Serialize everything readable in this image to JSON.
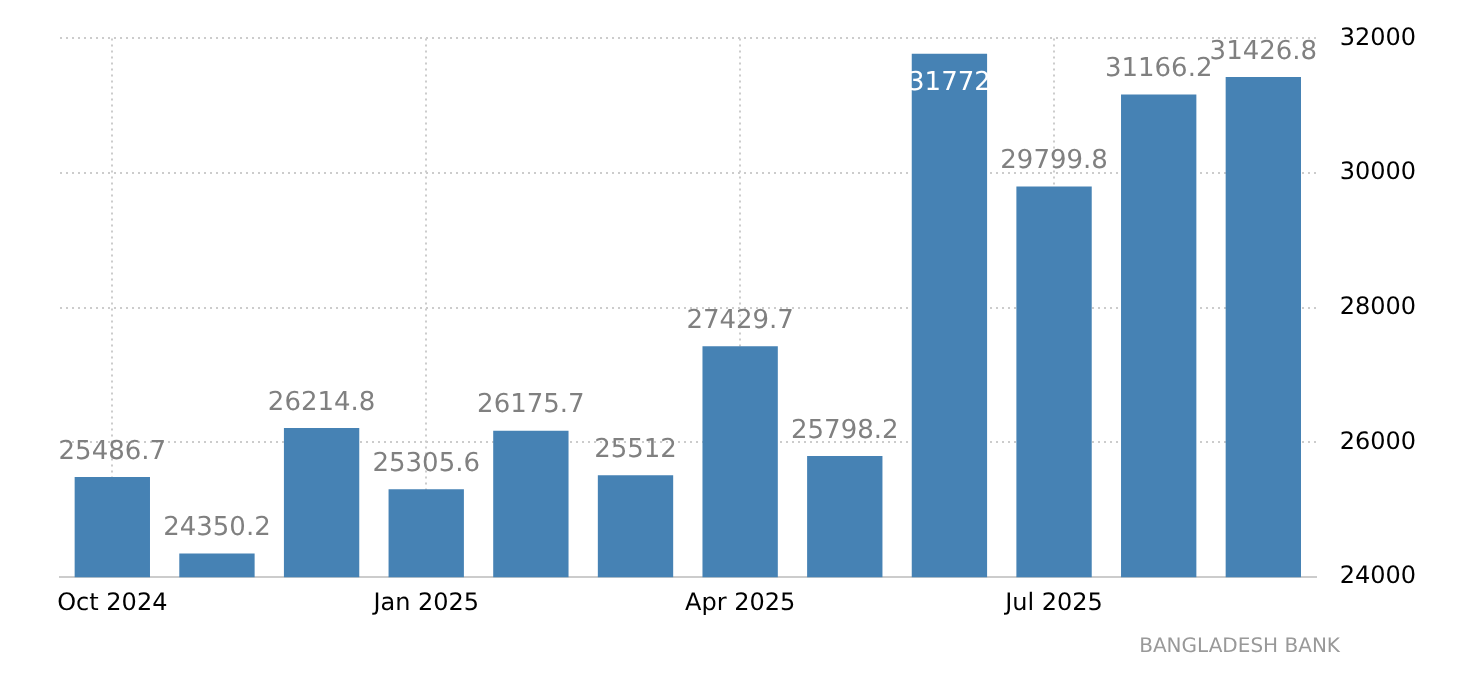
{
  "chart_data": {
    "type": "bar",
    "categories": [
      "Oct 2024",
      null,
      null,
      "Jan 2025",
      null,
      null,
      "Apr 2025",
      null,
      null,
      "Jul 2025",
      null,
      null
    ],
    "values": [
      25486.7,
      24350.2,
      26214.8,
      25305.6,
      26175.7,
      25512,
      27429.7,
      25798.2,
      31772,
      29799.8,
      31166.2,
      31426.8
    ],
    "color": "#4682b4",
    "ylim": [
      24000,
      32000
    ],
    "yticks": [
      24000,
      26000,
      28000,
      30000,
      32000
    ],
    "grid": true,
    "data_labels": true,
    "annotations": [
      "BANGLADESH BANK"
    ]
  }
}
